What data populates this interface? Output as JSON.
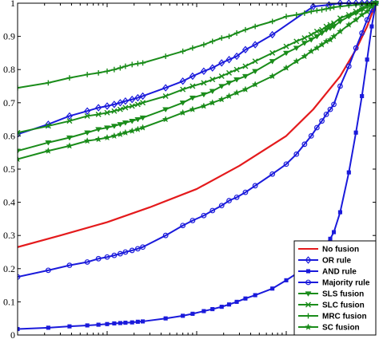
{
  "chart_data": {
    "type": "line",
    "title": "",
    "xlabel": "",
    "ylabel": "",
    "x_scale": "log",
    "xlim": [
      0.0001,
      1
    ],
    "ylim": [
      0,
      1
    ],
    "y_ticks": [
      0,
      0.1,
      0.2,
      0.3,
      0.4,
      0.5,
      0.6,
      0.7,
      0.8,
      0.9,
      1
    ],
    "y_tick_labels": [
      "0",
      "0.1",
      "0.2",
      "0.3",
      "0.4",
      "0.5",
      "0.6",
      "0.7",
      "0.8",
      "0.9",
      "1"
    ],
    "x_tick_labels": [],
    "grid": false,
    "legend_position": "bottom-right",
    "series": [
      {
        "name": "No fusion",
        "color": "#e41a1c",
        "marker": "none",
        "x": [
          0.0001,
          0.0003,
          0.001,
          0.003,
          0.01,
          0.03,
          0.1,
          0.2,
          0.4,
          0.6,
          0.8,
          1
        ],
        "y": [
          0.265,
          0.3,
          0.34,
          0.385,
          0.44,
          0.51,
          0.6,
          0.68,
          0.78,
          0.86,
          0.93,
          1.0
        ]
      },
      {
        "name": "OR rule",
        "color": "#1a1adb",
        "marker": "diamond",
        "x": [
          0.0001,
          0.00022,
          0.00038,
          0.0006,
          0.0008,
          0.001,
          0.0012,
          0.0014,
          0.0016,
          0.0019,
          0.0022,
          0.0025,
          0.0045,
          0.007,
          0.009,
          0.012,
          0.015,
          0.019,
          0.023,
          0.028,
          0.035,
          0.045,
          0.07,
          0.2,
          0.3,
          0.4,
          0.5,
          0.6,
          0.7,
          0.8,
          0.9,
          1
        ],
        "y": [
          0.605,
          0.635,
          0.66,
          0.675,
          0.685,
          0.69,
          0.695,
          0.7,
          0.705,
          0.71,
          0.715,
          0.72,
          0.745,
          0.765,
          0.78,
          0.795,
          0.805,
          0.82,
          0.83,
          0.84,
          0.86,
          0.875,
          0.905,
          0.99,
          0.995,
          1.0,
          1.0,
          1.0,
          1.0,
          1.0,
          1.0,
          1.0
        ]
      },
      {
        "name": "AND rule",
        "color": "#1a1adb",
        "marker": "square",
        "x": [
          0.0001,
          0.00022,
          0.00038,
          0.0006,
          0.0008,
          0.001,
          0.0012,
          0.0014,
          0.0016,
          0.0019,
          0.0022,
          0.0025,
          0.0045,
          0.007,
          0.009,
          0.012,
          0.015,
          0.019,
          0.023,
          0.028,
          0.035,
          0.045,
          0.07,
          0.1,
          0.13,
          0.16,
          0.19,
          0.22,
          0.25,
          0.28,
          0.31,
          0.34,
          0.4,
          0.5,
          0.6,
          0.7,
          0.8,
          0.9,
          1
        ],
        "y": [
          0.018,
          0.022,
          0.026,
          0.029,
          0.031,
          0.033,
          0.035,
          0.036,
          0.037,
          0.038,
          0.04,
          0.041,
          0.05,
          0.058,
          0.064,
          0.072,
          0.078,
          0.085,
          0.092,
          0.1,
          0.11,
          0.12,
          0.14,
          0.165,
          0.185,
          0.205,
          0.225,
          0.245,
          0.26,
          0.275,
          0.29,
          0.31,
          0.37,
          0.49,
          0.61,
          0.72,
          0.83,
          0.93,
          1.0
        ]
      },
      {
        "name": "Majority rule",
        "color": "#1a1adb",
        "marker": "circle",
        "x": [
          0.0001,
          0.00022,
          0.00038,
          0.0006,
          0.0008,
          0.001,
          0.0012,
          0.0014,
          0.0016,
          0.0019,
          0.0022,
          0.0025,
          0.0045,
          0.007,
          0.009,
          0.012,
          0.015,
          0.019,
          0.023,
          0.028,
          0.035,
          0.045,
          0.07,
          0.1,
          0.13,
          0.16,
          0.19,
          0.22,
          0.25,
          0.28,
          0.31,
          0.34,
          0.4,
          0.5,
          0.6,
          0.7,
          0.8,
          0.9,
          1
        ],
        "y": [
          0.175,
          0.195,
          0.21,
          0.22,
          0.23,
          0.235,
          0.24,
          0.245,
          0.25,
          0.255,
          0.26,
          0.265,
          0.3,
          0.33,
          0.345,
          0.36,
          0.375,
          0.39,
          0.405,
          0.415,
          0.43,
          0.45,
          0.485,
          0.515,
          0.545,
          0.575,
          0.6,
          0.625,
          0.645,
          0.665,
          0.68,
          0.695,
          0.75,
          0.81,
          0.865,
          0.91,
          0.95,
          0.98,
          1.0
        ]
      },
      {
        "name": "SLS fusion",
        "color": "#1a8c1a",
        "marker": "triangle-down",
        "x": [
          0.0001,
          0.00022,
          0.00038,
          0.0006,
          0.0008,
          0.001,
          0.0012,
          0.0014,
          0.0016,
          0.0019,
          0.0022,
          0.0025,
          0.0045,
          0.007,
          0.009,
          0.012,
          0.015,
          0.019,
          0.023,
          0.028,
          0.035,
          0.045,
          0.07,
          0.1,
          0.13,
          0.16,
          0.19,
          0.22,
          0.25,
          0.28,
          0.31,
          0.34,
          0.4,
          0.5,
          0.6,
          0.7,
          0.8,
          0.9,
          1
        ],
        "y": [
          0.555,
          0.58,
          0.595,
          0.61,
          0.62,
          0.625,
          0.63,
          0.635,
          0.64,
          0.645,
          0.65,
          0.655,
          0.68,
          0.7,
          0.715,
          0.725,
          0.735,
          0.75,
          0.76,
          0.77,
          0.78,
          0.795,
          0.825,
          0.85,
          0.865,
          0.88,
          0.89,
          0.9,
          0.91,
          0.92,
          0.925,
          0.93,
          0.945,
          0.96,
          0.97,
          0.98,
          0.99,
          0.995,
          1.0
        ]
      },
      {
        "name": "SLC fusion",
        "color": "#1a8c1a",
        "marker": "x",
        "x": [
          0.0001,
          0.00022,
          0.00038,
          0.0006,
          0.0008,
          0.001,
          0.0012,
          0.0014,
          0.0016,
          0.0019,
          0.0022,
          0.0025,
          0.0045,
          0.007,
          0.009,
          0.012,
          0.015,
          0.019,
          0.023,
          0.028,
          0.035,
          0.045,
          0.07,
          0.1,
          0.13,
          0.16,
          0.19,
          0.22,
          0.25,
          0.28,
          0.31,
          0.34,
          0.4,
          0.5,
          0.6,
          0.7,
          0.8,
          0.9,
          1
        ],
        "y": [
          0.61,
          0.63,
          0.645,
          0.66,
          0.665,
          0.67,
          0.675,
          0.68,
          0.685,
          0.69,
          0.695,
          0.7,
          0.72,
          0.74,
          0.75,
          0.76,
          0.77,
          0.78,
          0.79,
          0.8,
          0.81,
          0.825,
          0.85,
          0.87,
          0.885,
          0.895,
          0.905,
          0.915,
          0.92,
          0.93,
          0.935,
          0.94,
          0.955,
          0.965,
          0.975,
          0.985,
          0.99,
          0.995,
          1.0
        ]
      },
      {
        "name": "MRC fusion",
        "color": "#1a8c1a",
        "marker": "plus",
        "x": [
          0.0001,
          0.00022,
          0.00038,
          0.0006,
          0.0008,
          0.001,
          0.0012,
          0.0014,
          0.0016,
          0.0019,
          0.0022,
          0.0025,
          0.0045,
          0.007,
          0.009,
          0.012,
          0.015,
          0.019,
          0.023,
          0.028,
          0.035,
          0.045,
          0.07,
          0.1,
          0.13,
          0.16,
          0.19,
          0.22,
          0.25,
          0.28,
          0.31,
          0.34,
          0.4,
          0.5,
          0.6,
          0.7,
          0.8,
          0.9,
          1
        ],
        "y": [
          0.745,
          0.76,
          0.775,
          0.785,
          0.79,
          0.795,
          0.8,
          0.805,
          0.81,
          0.815,
          0.818,
          0.82,
          0.84,
          0.855,
          0.865,
          0.875,
          0.885,
          0.895,
          0.9,
          0.91,
          0.92,
          0.93,
          0.945,
          0.96,
          0.965,
          0.97,
          0.975,
          0.978,
          0.98,
          0.983,
          0.985,
          0.988,
          0.99,
          0.993,
          0.995,
          0.997,
          0.998,
          0.999,
          1.0
        ]
      },
      {
        "name": "SC fusion",
        "color": "#1a8c1a",
        "marker": "star",
        "x": [
          0.0001,
          0.00022,
          0.00038,
          0.0006,
          0.0008,
          0.001,
          0.0012,
          0.0014,
          0.0016,
          0.0019,
          0.0022,
          0.0025,
          0.0045,
          0.007,
          0.009,
          0.012,
          0.015,
          0.019,
          0.023,
          0.028,
          0.035,
          0.045,
          0.07,
          0.1,
          0.13,
          0.16,
          0.19,
          0.22,
          0.25,
          0.28,
          0.31,
          0.34,
          0.4,
          0.5,
          0.6,
          0.7,
          0.8,
          0.9,
          1
        ],
        "y": [
          0.53,
          0.555,
          0.57,
          0.585,
          0.59,
          0.595,
          0.6,
          0.605,
          0.61,
          0.615,
          0.62,
          0.625,
          0.65,
          0.67,
          0.68,
          0.69,
          0.7,
          0.71,
          0.72,
          0.73,
          0.74,
          0.755,
          0.78,
          0.805,
          0.825,
          0.84,
          0.855,
          0.865,
          0.875,
          0.885,
          0.89,
          0.9,
          0.915,
          0.935,
          0.95,
          0.965,
          0.975,
          0.99,
          1.0
        ]
      }
    ]
  }
}
